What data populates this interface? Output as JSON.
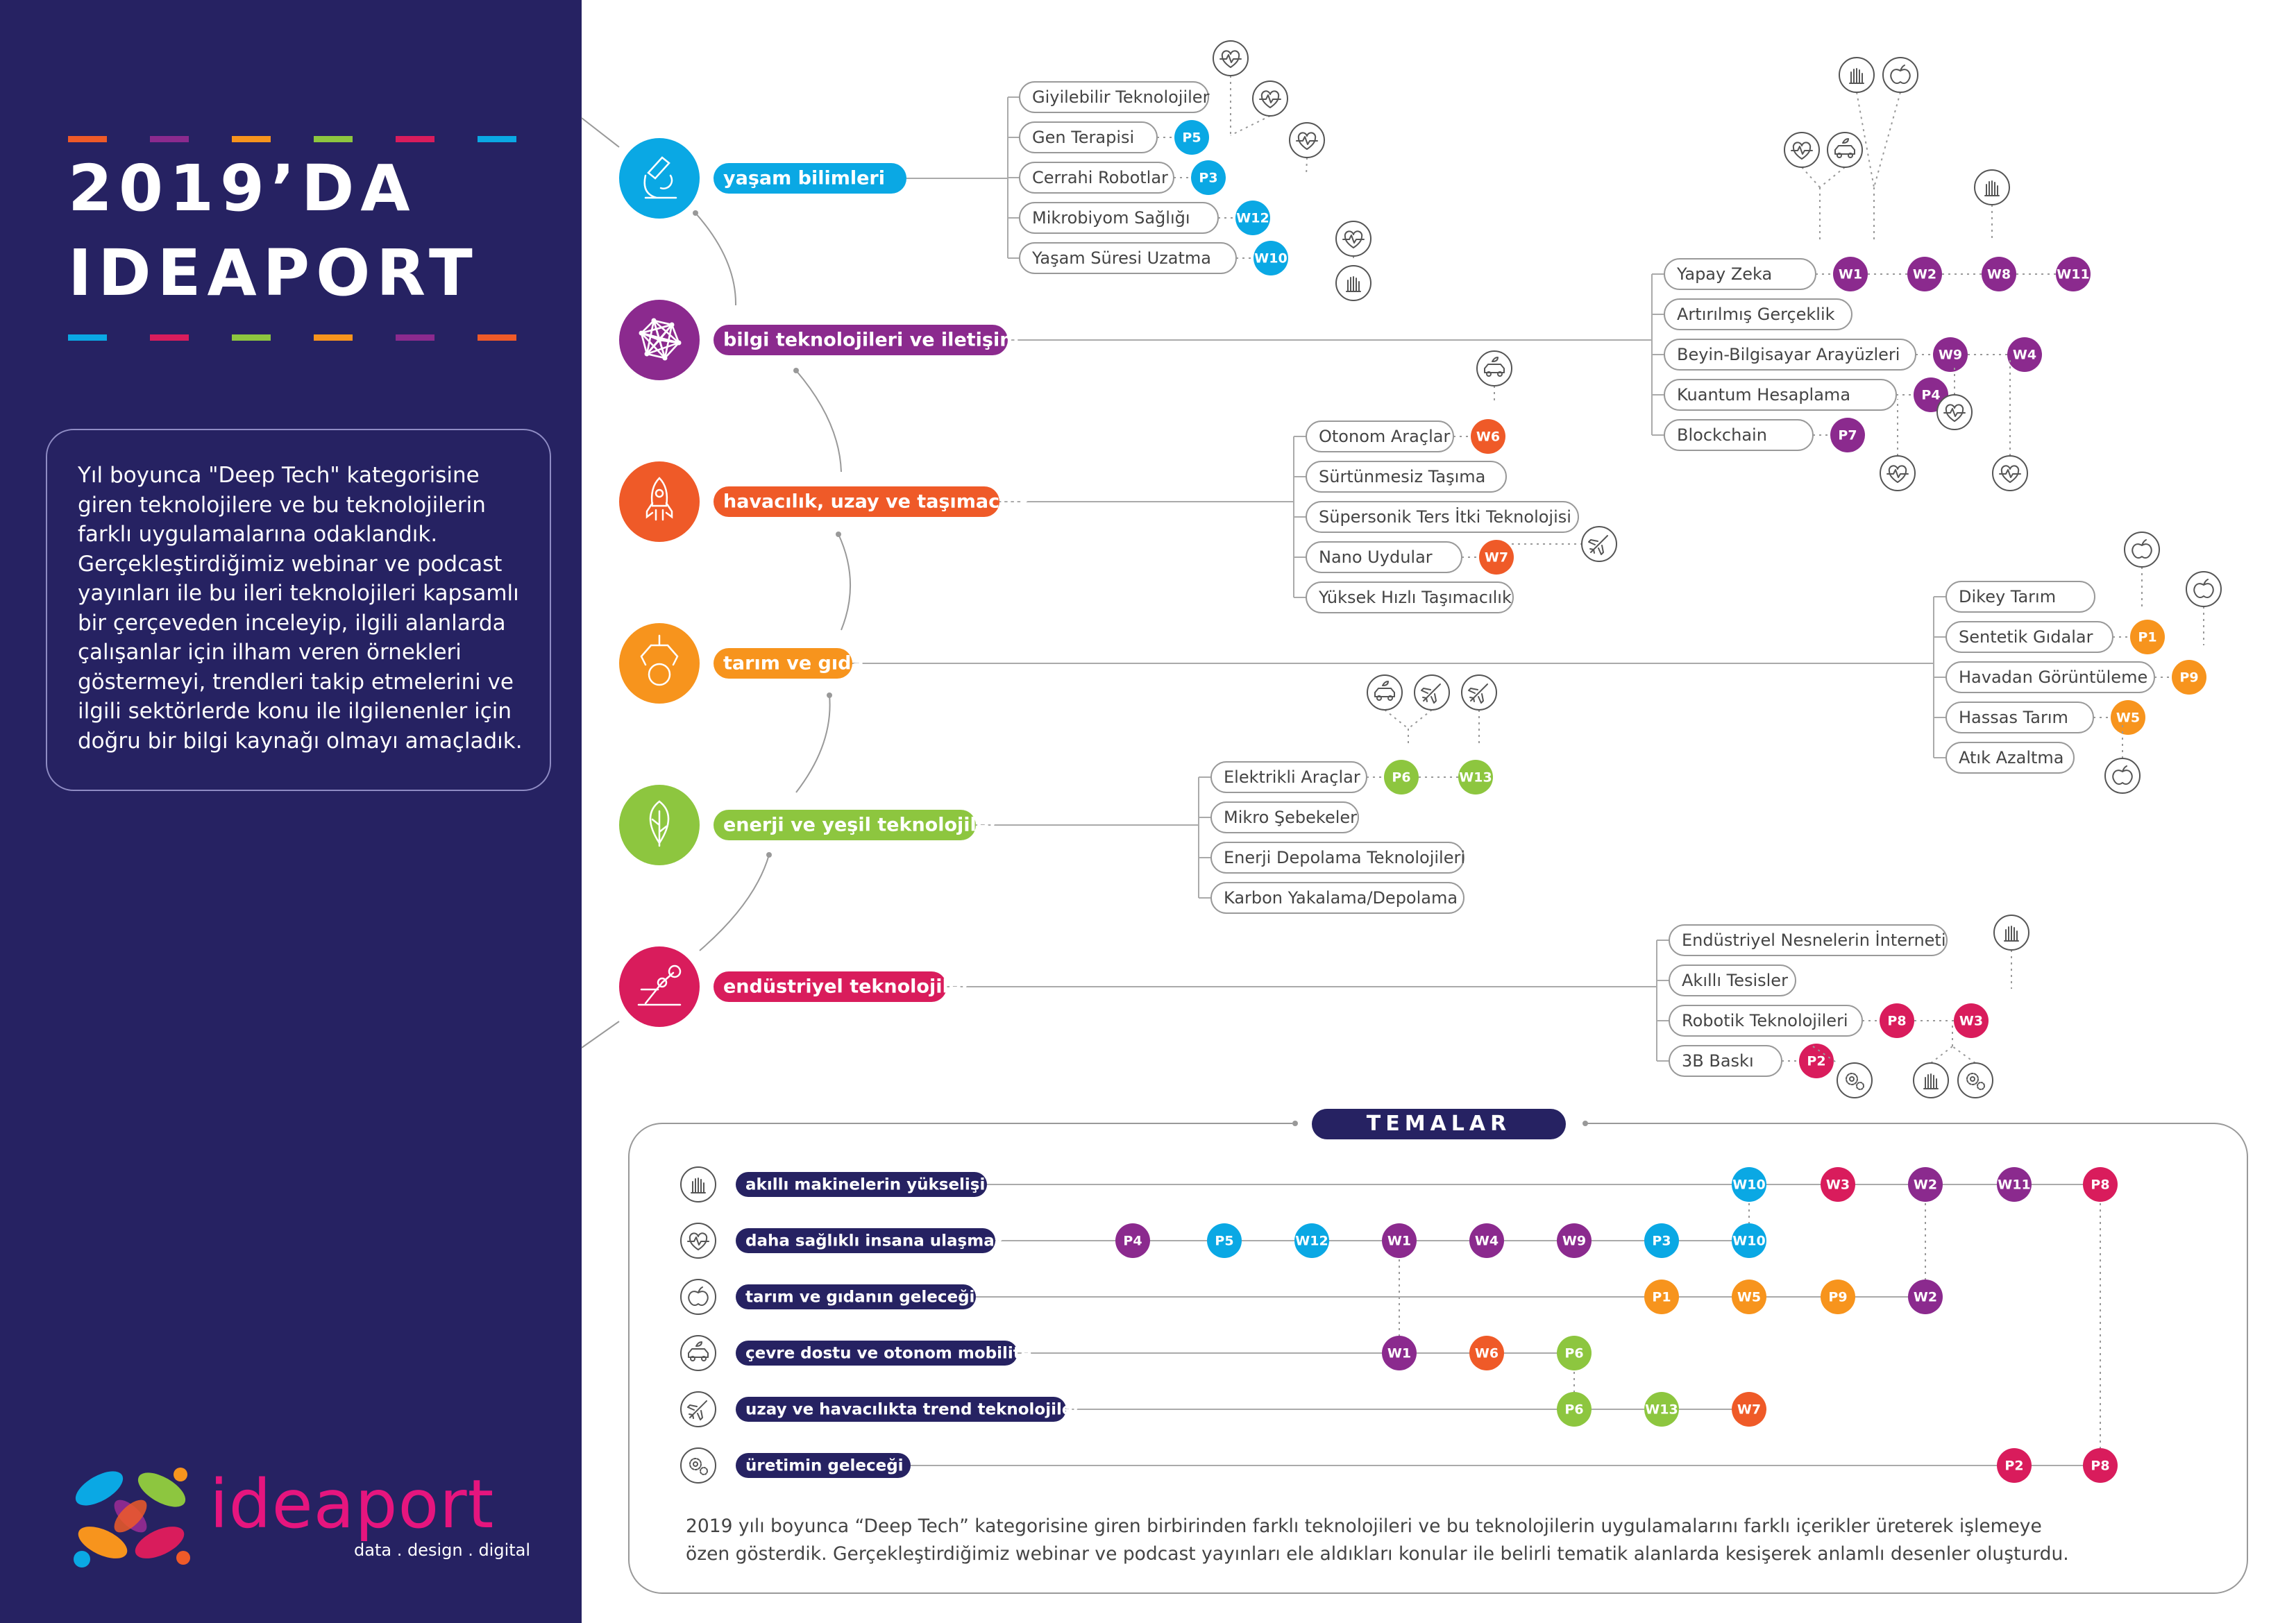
{
  "title": {
    "line1": "2019’DA",
    "line2": "IDEAPORT"
  },
  "intro": "Yıl boyunca \"Deep Tech\" kategorisine giren teknolojilere ve bu teknolojilerin farklı uygulamalarına odaklandık. Gerçekleştirdiğimiz webinar ve podcast yayınları ile bu ileri teknolojileri kapsamlı bir çerçeveden inceleyip, ilgili alanlarda çalışanlar için ilham veren örnekleri göstermeyi, trendleri takip etmelerini ve ilgili sektörlerde konu ile ilgilenenler için doğru bir bilgi kaynağı olmayı amaçladık.",
  "brand": {
    "name": "ideaport",
    "tagline": "data . design . digital"
  },
  "colors": {
    "navy": "#262262",
    "blue": "#0aa8e4",
    "purple": "#8b2a8e",
    "orange_red": "#ef5a28",
    "orange": "#f7941d",
    "green": "#8dc63f",
    "pink": "#d91c5c"
  },
  "dashes": [
    "#ef5a28",
    "#8b2a8e",
    "#f7941d",
    "#8dc63f",
    "#d91c5c",
    "#0aa8e4"
  ],
  "categories": [
    {
      "label": "yaşam bilimleri",
      "icon": "microscope-icon",
      "color": "#0aa8e4",
      "techs": [
        {
          "label": "Giyilebilir Teknolojiler",
          "badges": []
        },
        {
          "label": "Gen Terapisi",
          "badges": [
            "P5"
          ]
        },
        {
          "label": "Cerrahi Robotlar",
          "badges": [
            "P3"
          ]
        },
        {
          "label": "Mikrobiyom Sağlığı",
          "badges": [
            "W12"
          ]
        },
        {
          "label": "Yaşam Süresi Uzatma",
          "badges": [
            "W10"
          ]
        }
      ]
    },
    {
      "label": "bilgi teknolojileri ve iletişim",
      "icon": "network-icon",
      "color": "#8b2a8e",
      "techs": [
        {
          "label": "Yapay Zeka",
          "badges": [
            "W1",
            "W2",
            "W8",
            "W11"
          ]
        },
        {
          "label": "Artırılmış Gerçeklik",
          "badges": []
        },
        {
          "label": "Beyin-Bilgisayar Arayüzleri",
          "badges": [
            "W9",
            "W4"
          ]
        },
        {
          "label": "Kuantum Hesaplama",
          "badges": [
            "P4"
          ]
        },
        {
          "label": "Blockchain",
          "badges": [
            "P7"
          ]
        }
      ]
    },
    {
      "label": "havacılık, uzay ve taşımacılık",
      "icon": "rocket-icon",
      "color": "#ef5a28",
      "techs": [
        {
          "label": "Otonom Araçlar",
          "badges": [
            "W6"
          ]
        },
        {
          "label": "Sürtünmesiz Taşıma",
          "badges": []
        },
        {
          "label": "Süpersonik Ters İtki Teknolojisi",
          "badges": []
        },
        {
          "label": "Nano Uydular",
          "badges": [
            "W7"
          ]
        },
        {
          "label": "Yüksek Hızlı Taşımacılık",
          "badges": []
        }
      ]
    },
    {
      "label": "tarım ve gıda",
      "icon": "robot-arm-apple-icon",
      "color": "#f7941d",
      "techs": [
        {
          "label": "Dikey Tarım",
          "badges": []
        },
        {
          "label": "Sentetik Gıdalar",
          "badges": [
            "P1"
          ]
        },
        {
          "label": "Havadan Görüntüleme",
          "badges": [
            "P9"
          ]
        },
        {
          "label": "Hassas Tarım",
          "badges": [
            "W5"
          ]
        },
        {
          "label": "Atık Azaltma",
          "badges": []
        }
      ]
    },
    {
      "label": "enerji ve yeşil teknolojiler",
      "icon": "leaf-icon",
      "color": "#8dc63f",
      "techs": [
        {
          "label": "Elektrikli Araçlar",
          "badges": [
            "P6",
            "W13"
          ]
        },
        {
          "label": "Mikro Şebekeler",
          "badges": []
        },
        {
          "label": "Enerji Depolama Teknolojileri",
          "badges": []
        },
        {
          "label": "Karbon Yakalama/Depolama",
          "badges": []
        }
      ]
    },
    {
      "label": "endüstriyel teknolojiler",
      "icon": "industrial-robot-icon",
      "color": "#d91c5c",
      "techs": [
        {
          "label": "Endüstriyel Nesnelerin İnterneti",
          "badges": []
        },
        {
          "label": "Akıllı Tesisler",
          "badges": []
        },
        {
          "label": "Robotik Teknolojileri",
          "badges": [
            "P8",
            "W3"
          ]
        },
        {
          "label": "3B Baskı",
          "badges": [
            "P2"
          ]
        }
      ]
    }
  ],
  "themes_title": "TEMALAR",
  "themes": [
    {
      "label": "akıllı makinelerin yükselişi",
      "icon": "robot-hand-icon",
      "badges": [
        [
          "W10",
          "#0aa8e4"
        ],
        [
          "W3",
          "#d91c5c"
        ],
        [
          "W2",
          "#8b2a8e"
        ],
        [
          "W11",
          "#8b2a8e"
        ],
        [
          "P8",
          "#d91c5c"
        ]
      ]
    },
    {
      "label": "daha sağlıklı insana ulaşmak",
      "icon": "heartbeat-icon",
      "badges": [
        [
          "P4",
          "#8b2a8e"
        ],
        [
          "P5",
          "#0aa8e4"
        ],
        [
          "W12",
          "#0aa8e4"
        ],
        [
          "W1",
          "#8b2a8e"
        ],
        [
          "W4",
          "#8b2a8e"
        ],
        [
          "W9",
          "#8b2a8e"
        ],
        [
          "P3",
          "#0aa8e4"
        ],
        [
          "W10",
          "#0aa8e4"
        ]
      ]
    },
    {
      "label": "tarım ve gıdanın geleceği",
      "icon": "apple-icon",
      "badges": [
        [
          "P1",
          "#f7941d"
        ],
        [
          "W5",
          "#f7941d"
        ],
        [
          "P9",
          "#f7941d"
        ],
        [
          "W2",
          "#8b2a8e"
        ]
      ]
    },
    {
      "label": "çevre dostu ve otonom mobilite",
      "icon": "eco-car-icon",
      "badges": [
        [
          "W1",
          "#8b2a8e"
        ],
        [
          "W6",
          "#ef5a28"
        ],
        [
          "P6",
          "#8dc63f"
        ]
      ]
    },
    {
      "label": "uzay ve havacılıkta trend teknolojiler",
      "icon": "airplane-icon",
      "badges": [
        [
          "P6",
          "#8dc63f"
        ],
        [
          "W13",
          "#8dc63f"
        ],
        [
          "W7",
          "#ef5a28"
        ]
      ]
    },
    {
      "label": "üretimin geleceği",
      "icon": "gears-icon",
      "badges": [
        [
          "P2",
          "#d91c5c"
        ],
        [
          "P8",
          "#d91c5c"
        ]
      ]
    }
  ],
  "footer": "2019 yılı boyunca “Deep Tech” kategorisine giren birbirinden farklı teknolojileri ve bu teknolojilerin uygulamalarını farklı içerikler üreterek işlemeye özen gösterdik. Gerçekleştirdiğimiz webinar ve podcast yayınları ele aldıkları konular ile belirli tematik alanlarda kesişerek anlamlı desenler oluşturdu."
}
